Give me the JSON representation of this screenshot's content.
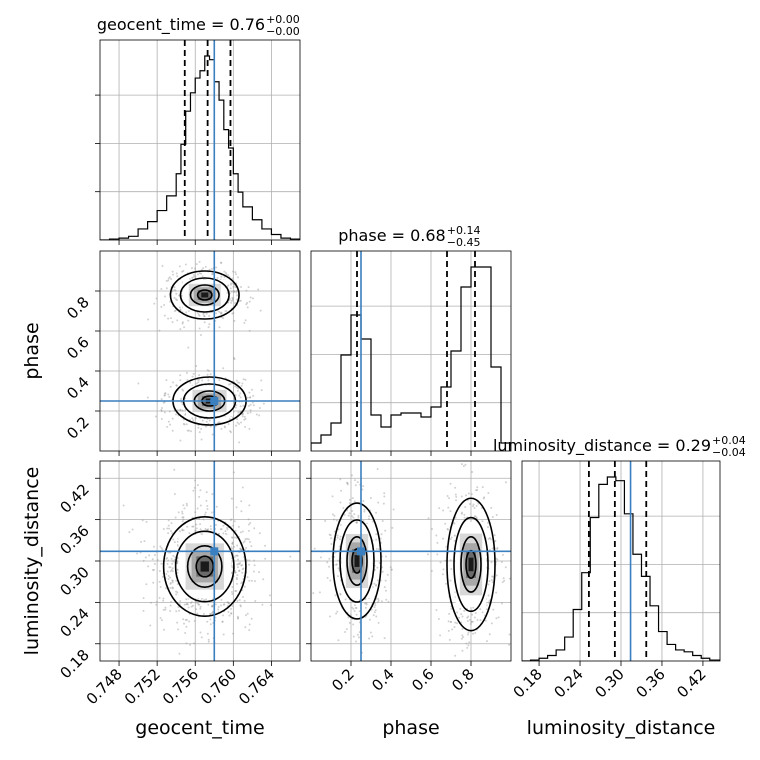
{
  "chart_data": {
    "type": "corner",
    "parameters": [
      "geocent_time",
      "phase",
      "luminosity_distance"
    ],
    "titles": {
      "geocent_time": {
        "label": "geocent_time",
        "median": "0.76",
        "plus": "+0.00",
        "minus": "−0.00"
      },
      "phase": {
        "label": "phase",
        "median": "0.68",
        "plus": "+0.14",
        "minus": "−0.45"
      },
      "luminosity_distance": {
        "label": "luminosity_distance",
        "median": "0.29",
        "plus": "+0.04",
        "minus": "−0.04"
      }
    },
    "axis_labels": {
      "geocent_time": "geocent_time",
      "phase": "phase",
      "luminosity_distance": "luminosity_distance"
    },
    "ranges": {
      "geocent_time": [
        0.746,
        0.767
      ],
      "phase": [
        0.0,
        1.0
      ],
      "luminosity_distance": [
        0.155,
        0.445
      ]
    },
    "ticks": {
      "geocent_time": [
        0.748,
        0.752,
        0.756,
        0.76,
        0.764
      ],
      "phase": [
        0.2,
        0.4,
        0.6,
        0.8
      ],
      "luminosity_distance": [
        0.18,
        0.24,
        0.3,
        0.36,
        0.42
      ]
    },
    "tick_labels": {
      "geocent_time": [
        "0.748",
        "0.752",
        "0.756",
        "0.760",
        "0.764"
      ],
      "phase": [
        "0.2",
        "0.4",
        "0.6",
        "0.8"
      ],
      "luminosity_distance": [
        "0.18",
        "0.24",
        "0.30",
        "0.36",
        "0.42"
      ]
    },
    "truths": {
      "geocent_time": 0.758,
      "phase": 0.25,
      "luminosity_distance": 0.314
    },
    "quantiles": {
      "geocent_time": [
        0.7549,
        0.7573,
        0.7597
      ],
      "phase": [
        0.23,
        0.68,
        0.82
      ],
      "luminosity_distance": [
        0.253,
        0.291,
        0.337
      ]
    },
    "histograms": {
      "geocent_time": {
        "edges": [
          0.746,
          0.747,
          0.748,
          0.749,
          0.75,
          0.751,
          0.752,
          0.753,
          0.754,
          0.7545,
          0.755,
          0.7555,
          0.756,
          0.7565,
          0.757,
          0.7575,
          0.758,
          0.7585,
          0.759,
          0.7595,
          0.76,
          0.7605,
          0.761,
          0.762,
          0.763,
          0.764,
          0.765,
          0.766,
          0.767
        ],
        "counts": [
          0,
          0.5,
          1,
          2,
          6,
          10,
          16,
          24,
          36,
          52,
          70,
          80,
          88,
          92,
          100,
          98,
          86,
          76,
          60,
          50,
          36,
          26,
          18,
          11,
          6,
          3,
          1,
          0.5
        ]
      },
      "phase": {
        "edges": [
          0.0,
          0.05,
          0.1,
          0.15,
          0.2,
          0.25,
          0.3,
          0.35,
          0.4,
          0.45,
          0.5,
          0.55,
          0.6,
          0.65,
          0.7,
          0.75,
          0.8,
          0.85,
          0.9,
          0.95,
          1.0
        ],
        "counts": [
          4,
          8,
          14,
          48,
          68,
          56,
          18,
          12,
          18,
          19,
          19,
          17,
          22,
          32,
          50,
          82,
          92,
          92,
          42,
          4
        ]
      },
      "luminosity_distance": {
        "edges": [
          0.155,
          0.1675,
          0.18,
          0.1925,
          0.205,
          0.2175,
          0.23,
          0.2425,
          0.255,
          0.2675,
          0.28,
          0.2925,
          0.305,
          0.3175,
          0.33,
          0.3425,
          0.355,
          0.3675,
          0.38,
          0.3925,
          0.405,
          0.4175,
          0.43,
          0.445
        ],
        "counts": [
          0,
          0.5,
          1.5,
          3,
          6,
          13,
          28,
          48,
          78,
          96,
          100,
          98,
          80,
          58,
          46,
          30,
          16,
          9,
          6,
          5,
          3,
          1.5,
          0.5
        ]
      }
    },
    "density_panels": [
      {
        "x": "geocent_time",
        "y": "phase",
        "modes": [
          {
            "cx": 0.757,
            "cy": 0.78,
            "sx": 0.0015,
            "sy": 0.05,
            "w": 1.0
          },
          {
            "cx": 0.7575,
            "cy": 0.25,
            "sx": 0.0016,
            "sy": 0.05,
            "w": 0.85
          }
        ]
      },
      {
        "x": "geocent_time",
        "y": "luminosity_distance",
        "modes": [
          {
            "cx": 0.757,
            "cy": 0.292,
            "sx": 0.0018,
            "sy": 0.03,
            "w": 1.0
          }
        ]
      },
      {
        "x": "phase",
        "y": "luminosity_distance",
        "modes": [
          {
            "cx": 0.23,
            "cy": 0.3,
            "sx": 0.05,
            "sy": 0.035,
            "w": 0.85
          },
          {
            "cx": 0.8,
            "cy": 0.295,
            "sx": 0.05,
            "sy": 0.04,
            "w": 1.0
          }
        ]
      }
    ],
    "colors": {
      "truth": "#3a7fbf",
      "line": "#000000",
      "grid": "#b0b0b0",
      "scatter": "#9a9a9a"
    }
  }
}
